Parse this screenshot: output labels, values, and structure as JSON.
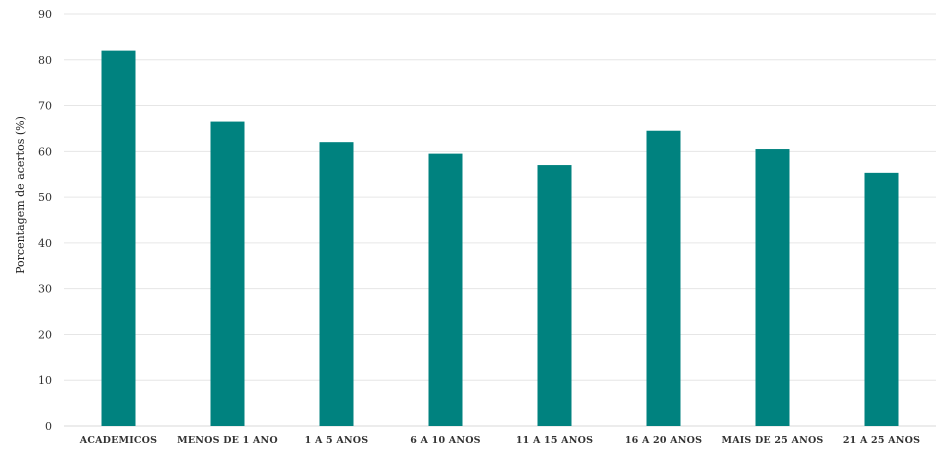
{
  "chart_data": {
    "type": "bar",
    "categories": [
      "ACADEMICOS",
      "MENOS DE 1 ANO",
      "1 A 5 ANOS",
      "6 A 10 ANOS",
      "11 A 15 ANOS",
      "16 A 20 ANOS",
      "MAIS DE 25 ANOS",
      "21 A 25 ANOS"
    ],
    "values": [
      82,
      66.5,
      62,
      59.5,
      57,
      64.5,
      60.5,
      55.3
    ],
    "title": "",
    "xlabel": "",
    "ylabel": "Porcentagem de acertos (%)",
    "ylim": [
      0,
      90
    ],
    "yticks": [
      0,
      10,
      20,
      30,
      40,
      50,
      60,
      70,
      80,
      90
    ],
    "grid": true,
    "legend": "none",
    "bar_color": "#00827f"
  }
}
